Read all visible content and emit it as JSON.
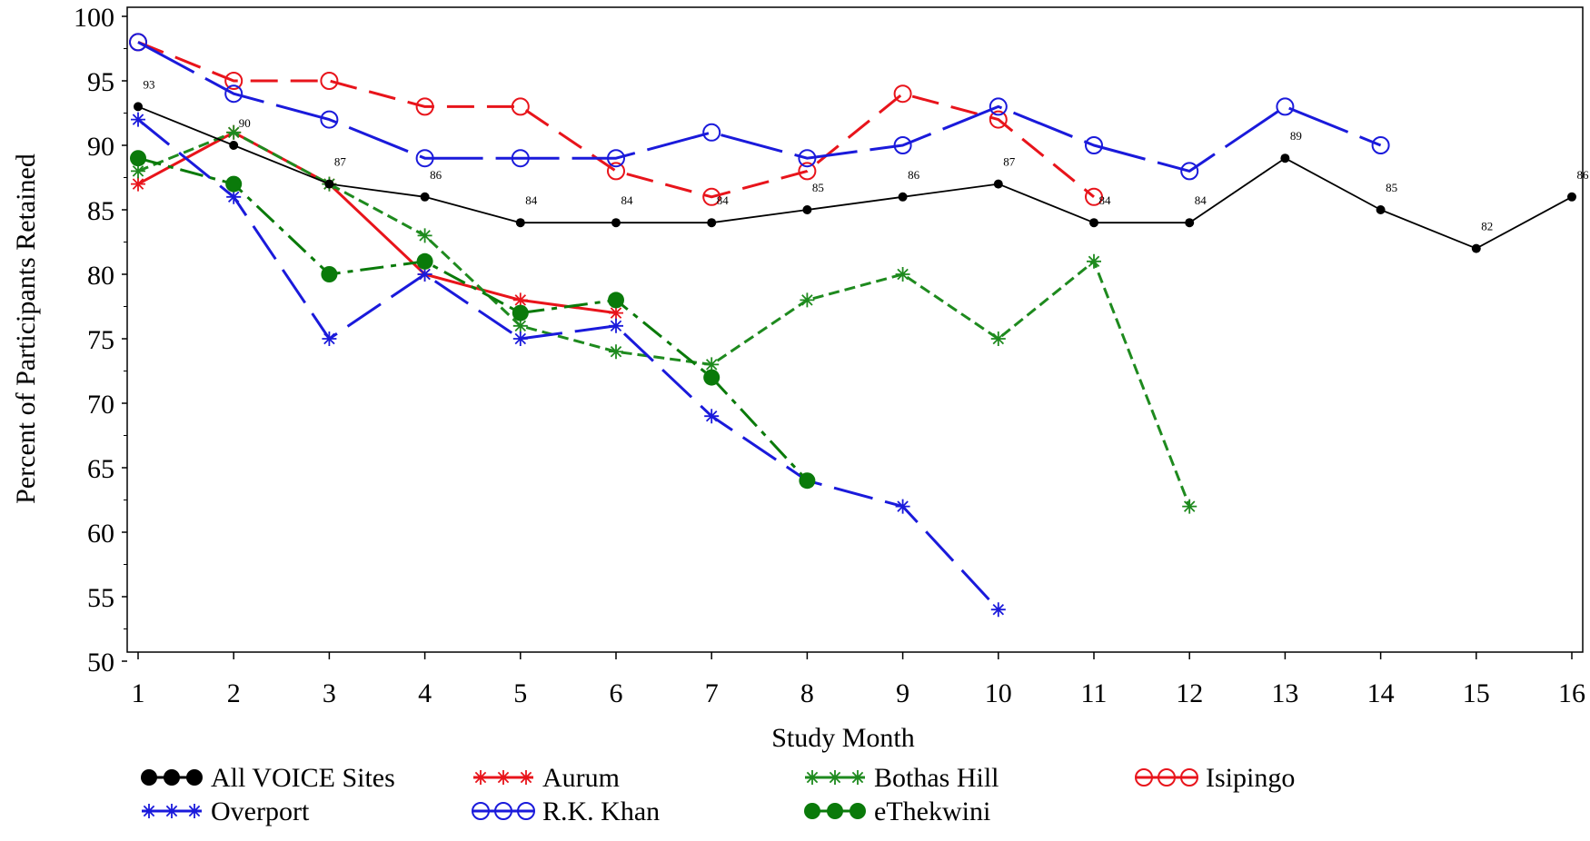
{
  "chart_data": {
    "type": "line",
    "title": "",
    "xlabel": "Study Month",
    "ylabel": "Percent of Participants Retained",
    "xlim": [
      1,
      16
    ],
    "ylim": [
      50,
      100
    ],
    "x_ticks": [
      1,
      2,
      3,
      4,
      5,
      6,
      7,
      8,
      9,
      10,
      11,
      12,
      13,
      14,
      15,
      16
    ],
    "y_ticks": [
      50,
      55,
      60,
      65,
      70,
      75,
      80,
      85,
      90,
      95,
      100
    ],
    "grid": false,
    "legend_position": "bottom",
    "series": [
      {
        "name": "All VOICE Sites",
        "color": "#000000",
        "marker": "dot",
        "dash": "",
        "x": [
          1,
          2,
          3,
          4,
          5,
          6,
          7,
          8,
          9,
          10,
          11,
          12,
          13,
          14,
          15,
          16
        ],
        "values": [
          93,
          90,
          87,
          86,
          84,
          84,
          84,
          85,
          86,
          87,
          84,
          84,
          89,
          85,
          82,
          86
        ],
        "labels": [
          "93",
          "90",
          "87",
          "86",
          "84",
          "84",
          "84",
          "85",
          "86",
          "87",
          "84",
          "84",
          "89",
          "85",
          "82",
          "86"
        ]
      },
      {
        "name": "Aurum",
        "color": "#e8141b",
        "marker": "star",
        "dash": "",
        "x": [
          1,
          2,
          3,
          4,
          5,
          6
        ],
        "values": [
          87,
          91,
          87,
          80,
          78,
          77
        ]
      },
      {
        "name": "Bothas Hill",
        "color": "#1e8a1e",
        "marker": "star",
        "dash": "12,6",
        "x": [
          1,
          2,
          3,
          4,
          5,
          6,
          7,
          8,
          9,
          10,
          11,
          12
        ],
        "values": [
          88,
          91,
          87,
          83,
          76,
          74,
          73,
          78,
          80,
          75,
          81,
          62
        ]
      },
      {
        "name": "Isipingo",
        "color": "#e8141b",
        "marker": "circle-open",
        "dash": "30,14",
        "x": [
          1,
          2,
          3,
          4,
          5,
          6,
          7,
          8,
          9,
          10,
          11
        ],
        "values": [
          98,
          95,
          95,
          93,
          93,
          88,
          86,
          88,
          94,
          92,
          86
        ]
      },
      {
        "name": "Overport",
        "color": "#1a1adb",
        "marker": "star",
        "dash": "44,14",
        "x": [
          1,
          2,
          3,
          4,
          5,
          6,
          7,
          8,
          9,
          10
        ],
        "values": [
          92,
          86,
          75,
          80,
          75,
          76,
          69,
          64,
          62,
          54
        ]
      },
      {
        "name": "R.K. Khan",
        "color": "#1a1adb",
        "marker": "circle-open",
        "dash": "70,14",
        "x": [
          1,
          2,
          3,
          4,
          5,
          6,
          7,
          8,
          9,
          10,
          11,
          12,
          13,
          14
        ],
        "values": [
          98,
          94,
          92,
          89,
          89,
          89,
          91,
          89,
          90,
          93,
          90,
          88,
          93,
          90
        ]
      },
      {
        "name": "eThekwini",
        "color": "#0a7a0a",
        "marker": "dot-large",
        "dash": "26,8,6,8",
        "x": [
          1,
          2,
          3,
          4,
          5,
          6,
          7,
          8
        ],
        "values": [
          89,
          87,
          80,
          81,
          77,
          78,
          72,
          64
        ]
      }
    ]
  }
}
